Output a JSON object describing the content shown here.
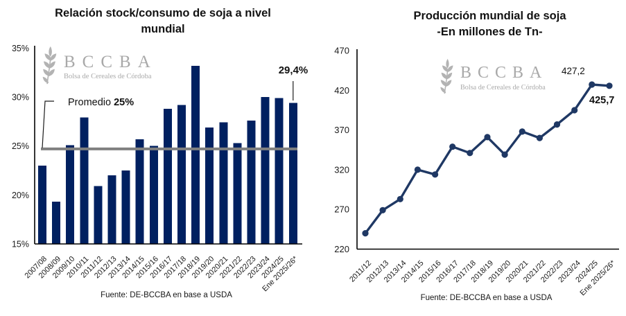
{
  "page": {
    "background": "#ffffff"
  },
  "logo": {
    "acronym": "BCCBA",
    "subtitle": "Bolsa de Cereales de Córdoba",
    "icon": "wheat-ear-icon",
    "icon_color": "#b3b3b3",
    "text_color": "#a9a9a9"
  },
  "chart_data": [
    {
      "type": "bar",
      "title": "Relación stock/consumo de soja a nivel mundial",
      "title_lines": [
        "Relación stock/consumo de soja a nivel",
        "mundial"
      ],
      "categories": [
        "2007/08",
        "2008/09",
        "2009/10",
        "2010/11",
        "2011/12",
        "2012/13",
        "2013/14",
        "2014/15",
        "2015/16",
        "2016/17",
        "2017/18",
        "2018/19",
        "2019/20",
        "2020/21",
        "2021/22",
        "2022/23",
        "2023/24",
        "2024/25",
        "Ene 2025/26*"
      ],
      "values": [
        23.0,
        19.3,
        25.1,
        27.9,
        20.9,
        22.0,
        22.5,
        25.7,
        25.0,
        28.8,
        29.2,
        33.2,
        26.9,
        27.4,
        25.3,
        27.6,
        30.0,
        29.9,
        29.4
      ],
      "unit": "%",
      "ylim": [
        15,
        35
      ],
      "yticks": [
        {
          "value": 15,
          "label": "15%"
        },
        {
          "value": 20,
          "label": "20%"
        },
        {
          "value": 25,
          "label": "25%"
        },
        {
          "value": 30,
          "label": "30%"
        },
        {
          "value": 35,
          "label": "35%"
        }
      ],
      "grid": false,
      "legend": false,
      "bar_color": "#002060",
      "annotations": {
        "average": {
          "prefix": "Promedio ",
          "bold_text": "25%",
          "line_value": 24.7,
          "line_color": "#808080"
        },
        "last_point": {
          "label": "29,4%",
          "value": 29.4
        }
      },
      "source": "Fuente: DE-BCCBA en base a USDA"
    },
    {
      "type": "line",
      "title": "Producción mundial de soja",
      "subtitle": "-En millones de Tn-",
      "title_lines": [
        "Producción mundial de soja",
        "-En millones de Tn-"
      ],
      "categories": [
        "2011/12",
        "2012/13",
        "2013/14",
        "2014/15",
        "2015/16",
        "2016/17",
        "2017/18",
        "2018/19",
        "2019/20",
        "2020/21",
        "2021/22",
        "2022/23",
        "2023/24",
        "2024/25",
        "Ene 2025/26*"
      ],
      "values": [
        240,
        269,
        283,
        320,
        314,
        349,
        341,
        361,
        339,
        368,
        360,
        377,
        395,
        427.2,
        425.7
      ],
      "unit": "millones de Tn",
      "ylim": [
        220,
        470
      ],
      "yticks": [
        {
          "value": 220,
          "label": "220"
        },
        {
          "value": 270,
          "label": "270"
        },
        {
          "value": 320,
          "label": "320"
        },
        {
          "value": 370,
          "label": "370"
        },
        {
          "value": 420,
          "label": "420"
        },
        {
          "value": 470,
          "label": "470"
        }
      ],
      "grid": false,
      "legend": false,
      "line_color": "#1f3864",
      "marker": "circle",
      "annotations": [
        {
          "label": "427,2",
          "category": "2024/25",
          "value": 427.2,
          "bold": false
        },
        {
          "label": "425,7",
          "category": "Ene 2025/26*",
          "value": 425.7,
          "bold": true
        }
      ],
      "source": "Fuente: DE-BCCBA en base a USDA"
    }
  ]
}
